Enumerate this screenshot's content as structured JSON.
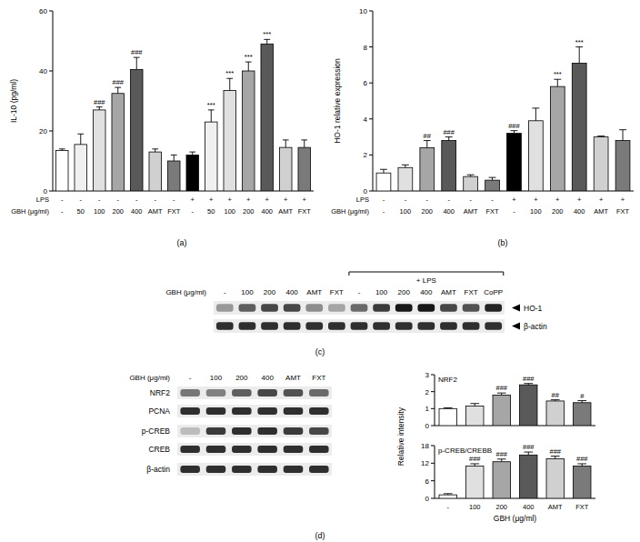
{
  "chart_data": [
    {
      "type": "bar",
      "panel": "(a)",
      "y_label": "IL-10 (pg/ml)",
      "x_label": "GBH (μg/ml)",
      "categories": [
        "-",
        "50",
        "100",
        "200",
        "400",
        "AMT",
        "FXT",
        "-",
        "50",
        "100",
        "200",
        "400",
        "AMT",
        "FXT"
      ],
      "x_rows": [
        {
          "label": "LPS",
          "labels": [
            "-",
            "-",
            "-",
            "-",
            "-",
            "-",
            "-",
            "+",
            "+",
            "+",
            "+",
            "+",
            "+",
            "+"
          ]
        }
      ],
      "values": [
        13.5,
        15.5,
        27,
        32.5,
        40.5,
        13,
        10,
        12,
        23,
        33.5,
        40,
        49,
        14.5,
        14.5
      ],
      "errors": [
        0.5,
        3.5,
        1,
        2,
        4,
        1,
        2,
        1,
        4,
        4,
        3,
        1.5,
        2.5,
        2.5
      ],
      "significance": [
        null,
        null,
        "###",
        "###",
        "###",
        null,
        null,
        null,
        "***",
        "***",
        "***",
        "***",
        null,
        null
      ],
      "colors": [
        "#ffffff",
        "#f0f0f0",
        "#e0e0e0",
        "#a6a6a6",
        "#595959",
        "#d0d0d0",
        "#7a7a7a",
        "#000000",
        "#f0f0f0",
        "#e0e0e0",
        "#a6a6a6",
        "#595959",
        "#d0d0d0",
        "#7a7a7a"
      ],
      "ylim": [
        0,
        60
      ],
      "yticks": [
        0,
        20,
        40,
        60
      ]
    },
    {
      "type": "bar",
      "panel": "(b)",
      "y_label": "HO-1 relative expression",
      "x_label": "GBH (μg/ml)",
      "categories": [
        "-",
        "100",
        "200",
        "400",
        "AMT",
        "FXT",
        "-",
        "100",
        "200",
        "400",
        "AMT",
        "FXT"
      ],
      "x_rows": [
        {
          "label": "LPS",
          "labels": [
            "-",
            "-",
            "-",
            "-",
            "-",
            "-",
            "+",
            "+",
            "+",
            "+",
            "+",
            "+"
          ]
        }
      ],
      "values": [
        1,
        1.3,
        2.4,
        2.8,
        0.8,
        0.6,
        3.2,
        3.9,
        5.8,
        7.1,
        3,
        2.8
      ],
      "errors": [
        0.2,
        0.15,
        0.4,
        0.2,
        0.1,
        0.15,
        0.15,
        0.7,
        0.4,
        0.9,
        0.05,
        0.6
      ],
      "significance": [
        null,
        null,
        "##",
        "###",
        null,
        null,
        "###",
        null,
        "***",
        "***",
        null,
        null
      ],
      "colors": [
        "#ffffff",
        "#e0e0e0",
        "#a6a6a6",
        "#595959",
        "#d0d0d0",
        "#7a7a7a",
        "#000000",
        "#e0e0e0",
        "#a6a6a6",
        "#595959",
        "#d0d0d0",
        "#7a7a7a"
      ],
      "ylim": [
        0,
        10
      ],
      "yticks": [
        0,
        2,
        4,
        6,
        8,
        10
      ]
    },
    {
      "type": "bar",
      "title": "NRF2",
      "tick_labels": "y",
      "values": [
        1,
        1.15,
        1.8,
        2.4,
        1.45,
        1.35
      ],
      "errors": [
        0.05,
        0.15,
        0.12,
        0.08,
        0.07,
        0.12
      ],
      "significance": [
        null,
        null,
        "###",
        "###",
        "##",
        "#"
      ],
      "colors": [
        "#ffffff",
        "#e0e0e0",
        "#a6a6a6",
        "#595959",
        "#d0d0d0",
        "#7a7a7a"
      ],
      "ylim": [
        0,
        3
      ],
      "yticks": [
        0,
        1,
        2,
        3
      ]
    },
    {
      "type": "bar",
      "title": "p-CREB/CREBB",
      "y_label": "Relative intensity",
      "x_label": "GBH (μg/ml)",
      "categories": [
        "-",
        "100",
        "200",
        "400",
        "AMT",
        "FXT"
      ],
      "values": [
        1.2,
        11,
        12.5,
        14.8,
        13.5,
        11
      ],
      "errors": [
        0.4,
        0.8,
        0.9,
        1,
        0.9,
        0.8
      ],
      "significance": [
        null,
        "###",
        "###",
        "###",
        "###",
        "###"
      ],
      "colors": [
        "#ffffff",
        "#e0e0e0",
        "#a6a6a6",
        "#595959",
        "#d0d0d0",
        "#7a7a7a"
      ],
      "ylim": [
        0,
        18
      ],
      "yticks": [
        0,
        6,
        12,
        18
      ]
    }
  ],
  "blots": [
    {
      "panel": "(c)",
      "lane_label": "GBH (μg/ml)",
      "lanes": [
        "-",
        "100",
        "200",
        "400",
        "AMT",
        "FXT",
        "-",
        "100",
        "200",
        "400",
        "AMT",
        "FXT",
        "CoPP"
      ],
      "groups": [
        {
          "label": "+ LPS",
          "start": 6,
          "end": 12
        }
      ],
      "rows": [
        {
          "label": "HO-1",
          "intensity": [
            0.35,
            0.6,
            0.7,
            0.7,
            0.4,
            0.3,
            0.55,
            0.75,
            0.9,
            0.9,
            0.7,
            0.65,
            0.85
          ]
        },
        {
          "label": "β-actin",
          "intensity": [
            0.8,
            0.8,
            0.8,
            0.8,
            0.8,
            0.8,
            0.8,
            0.8,
            0.8,
            0.8,
            0.8,
            0.8,
            0.8
          ]
        }
      ]
    },
    {
      "panel": "(d)",
      "lane_label": "GBH (μg/ml)",
      "lanes": [
        "-",
        "100",
        "200",
        "400",
        "AMT",
        "FXT"
      ],
      "rows": [
        {
          "label": "NRF2",
          "intensity": [
            0.5,
            0.45,
            0.6,
            0.7,
            0.65,
            0.55
          ]
        },
        {
          "label": "PCNA",
          "intensity": [
            0.8,
            0.8,
            0.8,
            0.8,
            0.8,
            0.8
          ]
        },
        {
          "label": "p-CREB",
          "intensity": [
            0.2,
            0.75,
            0.8,
            0.8,
            0.75,
            0.7
          ]
        },
        {
          "label": "CREB",
          "intensity": [
            0.8,
            0.8,
            0.8,
            0.8,
            0.8,
            0.8
          ]
        },
        {
          "label": "β-actin",
          "intensity": [
            0.8,
            0.8,
            0.8,
            0.8,
            0.8,
            0.8
          ]
        }
      ]
    }
  ]
}
